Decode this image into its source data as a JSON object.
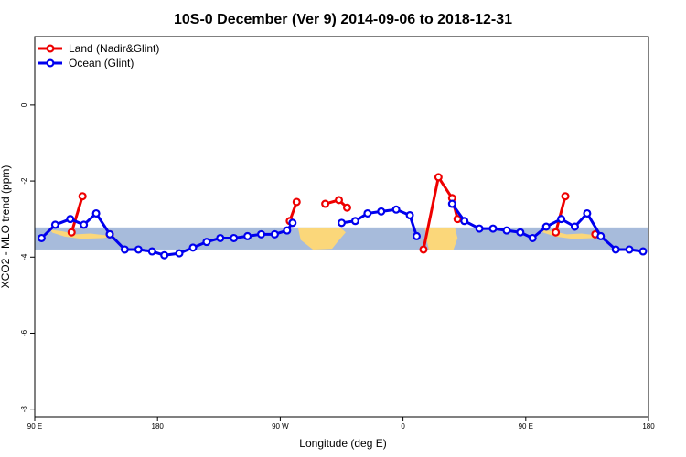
{
  "chart_data": {
    "type": "line",
    "title": "10S-0 December (Ver 9)   2014-09-06 to 2018-12-31",
    "xlabel": "Longitude (deg E)",
    "ylabel": "XCO2 - MLO trend (ppm)",
    "xlim": [
      90,
      540
    ],
    "ylim": [
      -8.2,
      1.8
    ],
    "x_ticks": [
      {
        "value": 90,
        "label": "90 E"
      },
      {
        "value": 180,
        "label": "180"
      },
      {
        "value": 270,
        "label": "90 W"
      },
      {
        "value": 360,
        "label": "0"
      },
      {
        "value": 450,
        "label": "90 E"
      },
      {
        "value": 540,
        "label": "180"
      }
    ],
    "y_ticks": [
      {
        "value": 0,
        "label": "0"
      },
      {
        "value": -2,
        "label": "-2"
      },
      {
        "value": -4,
        "label": "-4"
      },
      {
        "value": -6,
        "label": "-6"
      },
      {
        "value": -8,
        "label": "-8"
      }
    ],
    "band_range": [
      -3.8,
      -3.22
    ],
    "band_color": "#a7bbdb",
    "land_color": "#fbd77a",
    "legend_position": "top-left",
    "grid": false,
    "series": [
      {
        "name": "Land (Nadir&Glint)",
        "color": "#ee0000",
        "segments": [
          [
            [
              117,
              -3.35
            ],
            [
              125,
              -2.4
            ]
          ],
          [
            [
              145,
              -3.4
            ]
          ],
          [
            [
              277,
              -3.05
            ],
            [
              282,
              -2.55
            ]
          ],
          [
            [
              303,
              -2.6
            ],
            [
              313,
              -2.5
            ],
            [
              319,
              -2.7
            ]
          ],
          [
            [
              375,
              -3.8
            ],
            [
              386,
              -1.9
            ],
            [
              396,
              -2.45
            ],
            [
              400,
              -3.0
            ]
          ],
          [
            [
              472,
              -3.35
            ],
            [
              479,
              -2.4
            ]
          ],
          [
            [
              501,
              -3.4
            ]
          ]
        ]
      },
      {
        "name": "Ocean (Glint)",
        "color": "#0000ee",
        "segments": [
          [
            [
              95,
              -3.5
            ],
            [
              105,
              -3.15
            ],
            [
              116,
              -3.0
            ],
            [
              126,
              -3.15
            ],
            [
              135,
              -2.85
            ],
            [
              145,
              -3.4
            ],
            [
              156,
              -3.8
            ],
            [
              166,
              -3.8
            ],
            [
              176,
              -3.85
            ],
            [
              185,
              -3.95
            ],
            [
              196,
              -3.9
            ],
            [
              206,
              -3.75
            ],
            [
              216,
              -3.6
            ],
            [
              226,
              -3.5
            ],
            [
              236,
              -3.5
            ],
            [
              246,
              -3.45
            ],
            [
              256,
              -3.4
            ],
            [
              266,
              -3.4
            ],
            [
              275,
              -3.3
            ],
            [
              279,
              -3.1
            ]
          ],
          [
            [
              315,
              -3.1
            ],
            [
              325,
              -3.05
            ],
            [
              334,
              -2.85
            ],
            [
              344,
              -2.8
            ],
            [
              355,
              -2.75
            ],
            [
              365,
              -2.9
            ],
            [
              370,
              -3.45
            ]
          ],
          [
            [
              396,
              -2.6
            ],
            [
              405,
              -3.05
            ],
            [
              416,
              -3.25
            ],
            [
              426,
              -3.25
            ],
            [
              436,
              -3.3
            ],
            [
              446,
              -3.35
            ],
            [
              455,
              -3.5
            ],
            [
              465,
              -3.2
            ],
            [
              476,
              -3.0
            ],
            [
              486,
              -3.2
            ],
            [
              495,
              -2.85
            ],
            [
              505,
              -3.45
            ],
            [
              516,
              -3.8
            ],
            [
              526,
              -3.8
            ],
            [
              536,
              -3.85
            ]
          ]
        ]
      }
    ]
  }
}
